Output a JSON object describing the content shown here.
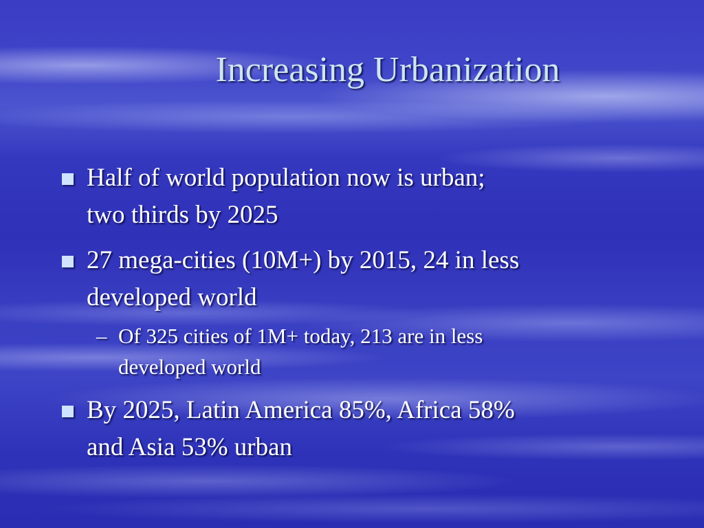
{
  "slide": {
    "title": "Increasing Urbanization",
    "bullets": [
      {
        "marker": "square-bullet-icon",
        "lines": [
          "Half of world population now is urban;",
          "two thirds by 2025"
        ]
      },
      {
        "marker": "square-bullet-icon",
        "lines": [
          "27 mega-cities (10M+) by 2015, 24 in less",
          "developed world"
        ],
        "sub": {
          "dash": "–",
          "lines": [
            "Of 325 cities of 1M+ today, 213 are in less",
            "developed world"
          ]
        }
      },
      {
        "marker": "square-bullet-icon",
        "lines": [
          "By 2025, Latin America 85%, Africa 58%",
          "and Asia 53% urban"
        ]
      }
    ]
  },
  "colors": {
    "background": "#3438bf",
    "title": "#cde6f0",
    "text": "#ffffff",
    "bullet": "#cfe3ff"
  }
}
